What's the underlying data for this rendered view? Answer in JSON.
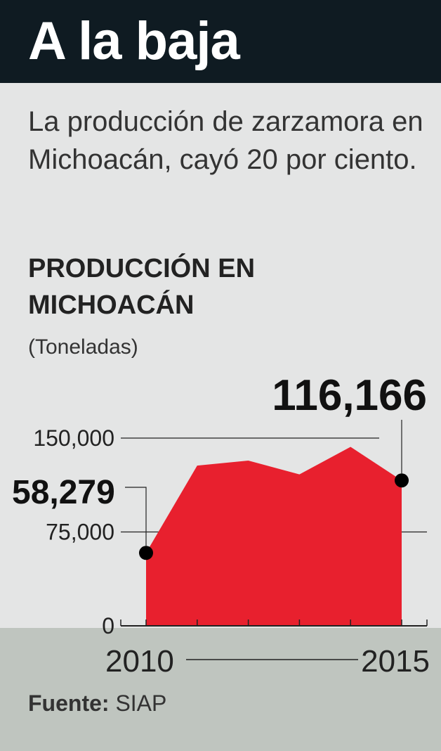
{
  "header": {
    "title": "A la baja",
    "subtitle": "La producción de zarzamora en Michoacán, cayó 20 por ciento.",
    "chart_title": "PRODUCCIÓN EN MICHOACÁN",
    "unit": "(Toneladas)"
  },
  "colors": {
    "header_bg": "#0f1b22",
    "panel_bg": "#e4e5e5",
    "footer_bg": "#bfc5bf",
    "area_fill": "#e8202e",
    "marker": "#000000"
  },
  "chart_data": {
    "type": "area",
    "x": [
      2010,
      2011,
      2012,
      2013,
      2014,
      2015
    ],
    "values": [
      58279,
      128000,
      132000,
      121000,
      143000,
      116166
    ],
    "ylim": [
      0,
      150000
    ],
    "yticks": [
      "0",
      "75,000",
      "150,000"
    ],
    "x_labels": [
      "2010",
      "2015"
    ],
    "callouts": [
      "58,279",
      "116,166"
    ],
    "grid": true
  },
  "footer": {
    "source_label": "Fuente:",
    "source_value": "SIAP"
  }
}
